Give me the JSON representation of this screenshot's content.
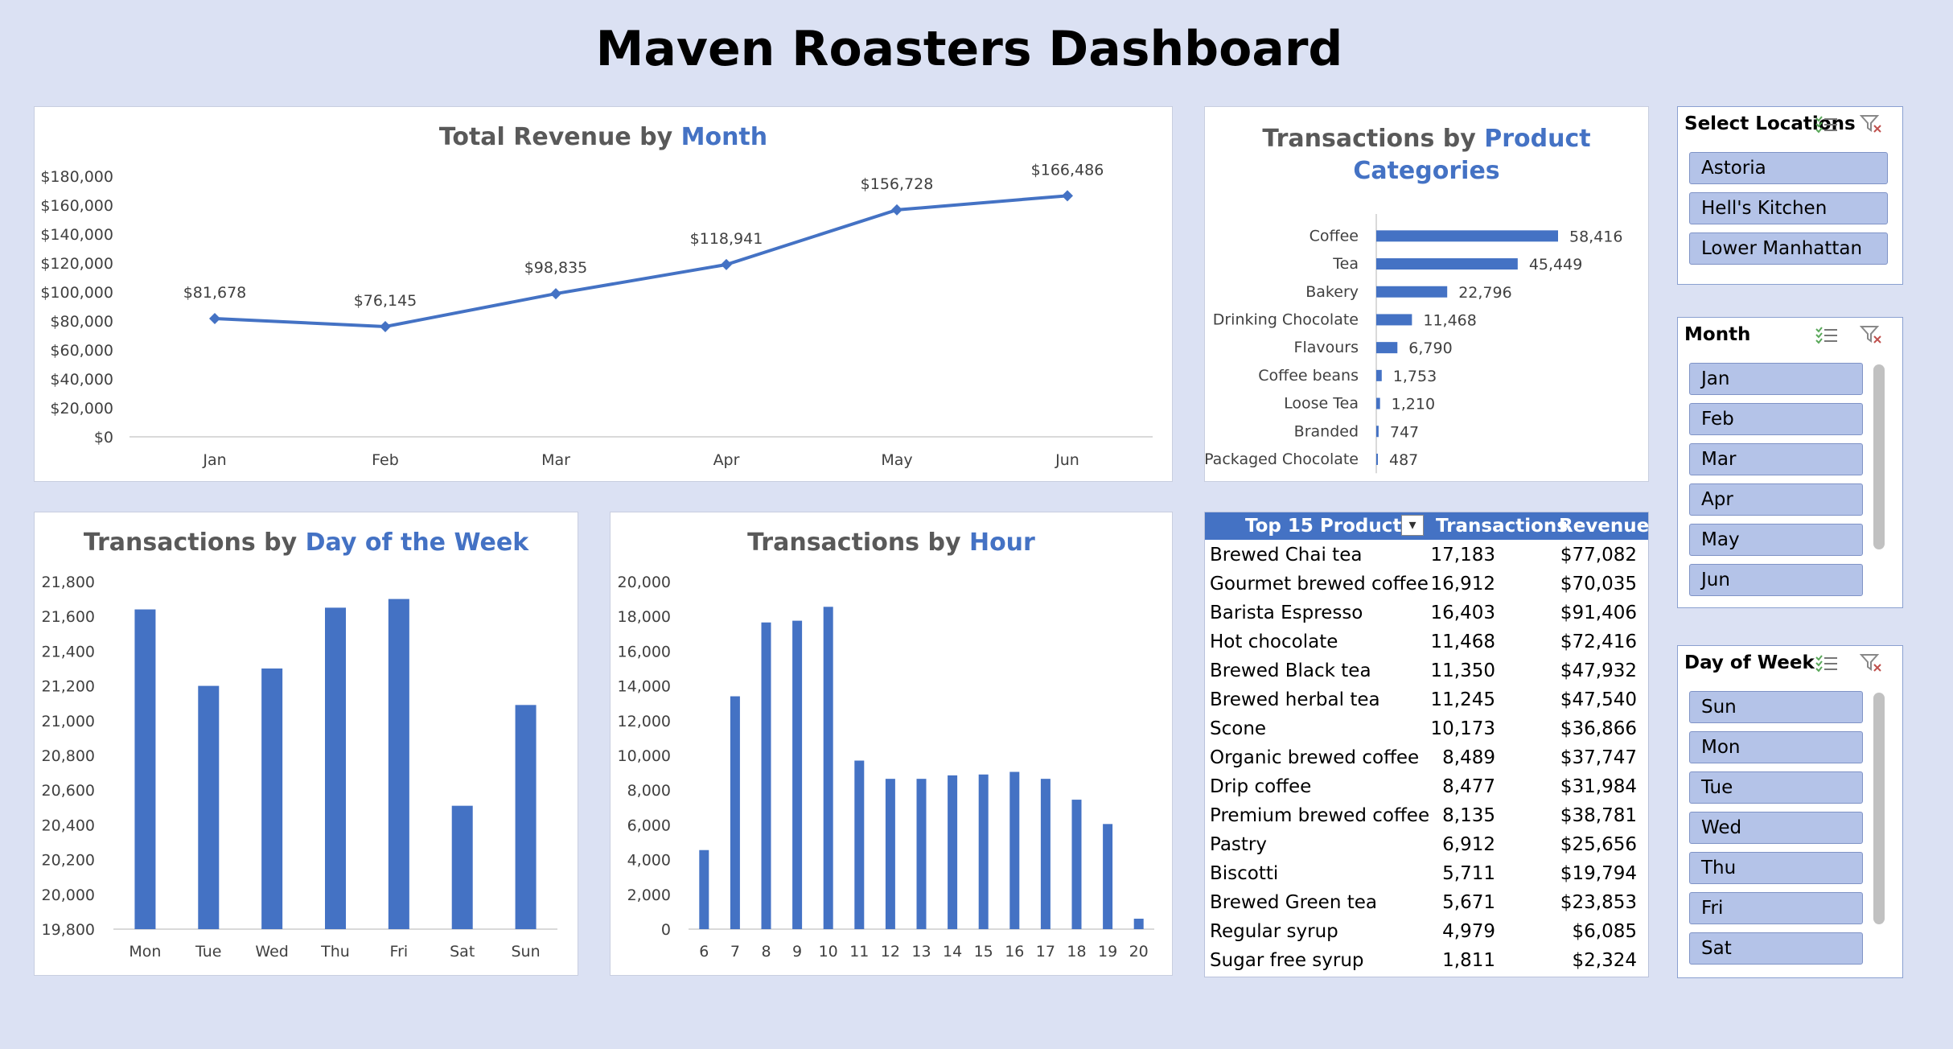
{
  "dashboard": {
    "title": "Maven Roasters Dashboard"
  },
  "colors": {
    "accent": "#4472c4",
    "background": "#dbe1f3",
    "slicer_item": "#b4c3e8"
  },
  "chart_data": [
    {
      "id": "revenue",
      "type": "line",
      "title_parts": [
        "Total Revenue ",
        "by ",
        "Month"
      ],
      "categories": [
        "Jan",
        "Feb",
        "Mar",
        "Apr",
        "May",
        "Jun"
      ],
      "values": [
        81678,
        76145,
        98835,
        118941,
        156728,
        166486
      ],
      "data_labels": [
        "$81,678",
        "$76,145",
        "$98,835",
        "$118,941",
        "$156,728",
        "$166,486"
      ],
      "ylim": [
        0,
        180000
      ],
      "yticks": [
        "$0",
        "$20,000",
        "$40,000",
        "$60,000",
        "$80,000",
        "$100,000",
        "$120,000",
        "$140,000",
        "$160,000",
        "$180,000"
      ]
    },
    {
      "id": "categories",
      "type": "bar",
      "orientation": "horizontal",
      "title_parts": [
        "Transactions by ",
        "Product",
        "Categories"
      ],
      "categories": [
        "Coffee",
        "Tea",
        "Bakery",
        "Drinking Chocolate",
        "Flavours",
        "Coffee beans",
        "Loose Tea",
        "Branded",
        "Packaged Chocolate"
      ],
      "values": [
        58416,
        45449,
        22796,
        11468,
        6790,
        1753,
        1210,
        747,
        487
      ],
      "data_labels": [
        "58,416",
        "45,449",
        "22,796",
        "11,468",
        "6,790",
        "1,753",
        "1,210",
        "747",
        "487"
      ]
    },
    {
      "id": "weekday",
      "type": "bar",
      "title_parts": [
        "Transactions by ",
        "Day of the Week"
      ],
      "categories": [
        "Mon",
        "Tue",
        "Wed",
        "Thu",
        "Fri",
        "Sat",
        "Sun"
      ],
      "values": [
        21640,
        21200,
        21300,
        21650,
        21700,
        20510,
        21090
      ],
      "ylim": [
        19800,
        21800
      ],
      "yticks": [
        "19,800",
        "20,000",
        "20,200",
        "20,400",
        "20,600",
        "20,800",
        "21,000",
        "21,200",
        "21,400",
        "21,600",
        "21,800"
      ]
    },
    {
      "id": "hour",
      "type": "bar",
      "title_parts": [
        "Transactions by ",
        "Hour"
      ],
      "categories": [
        "6",
        "7",
        "8",
        "9",
        "10",
        "11",
        "12",
        "13",
        "14",
        "15",
        "16",
        "17",
        "18",
        "19",
        "20"
      ],
      "values": [
        4550,
        13400,
        17650,
        17750,
        18550,
        9700,
        8650,
        8650,
        8850,
        8900,
        9050,
        8650,
        7450,
        6050,
        600
      ],
      "ylim": [
        0,
        20000
      ],
      "yticks": [
        "0",
        "2,000",
        "4,000",
        "6,000",
        "8,000",
        "10,000",
        "12,000",
        "14,000",
        "16,000",
        "18,000",
        "20,000"
      ]
    },
    {
      "id": "top15",
      "type": "table",
      "columns": [
        "Top 15 Products",
        "Transactions",
        "Revenue"
      ],
      "rows": [
        [
          "Brewed Chai tea",
          "17,183",
          "$77,082"
        ],
        [
          "Gourmet brewed coffee",
          "16,912",
          "$70,035"
        ],
        [
          "Barista Espresso",
          "16,403",
          "$91,406"
        ],
        [
          "Hot chocolate",
          "11,468",
          "$72,416"
        ],
        [
          "Brewed Black tea",
          "11,350",
          "$47,932"
        ],
        [
          "Brewed herbal tea",
          "11,245",
          "$47,540"
        ],
        [
          "Scone",
          "10,173",
          "$36,866"
        ],
        [
          "Organic brewed coffee",
          "8,489",
          "$37,747"
        ],
        [
          "Drip coffee",
          "8,477",
          "$31,984"
        ],
        [
          "Premium brewed coffee",
          "8,135",
          "$38,781"
        ],
        [
          "Pastry",
          "6,912",
          "$25,656"
        ],
        [
          "Biscotti",
          "5,711",
          "$19,794"
        ],
        [
          "Brewed Green tea",
          "5,671",
          "$23,853"
        ],
        [
          "Regular syrup",
          "4,979",
          "$6,085"
        ],
        [
          "Sugar free syrup",
          "1,811",
          "$2,324"
        ]
      ]
    }
  ],
  "slicers": [
    {
      "id": "locations",
      "title": "Select Locations",
      "items": [
        "Astoria",
        "Hell's Kitchen",
        "Lower Manhattan"
      ],
      "icons": [
        "multi-select-icon",
        "clear-filter-icon"
      ]
    },
    {
      "id": "month",
      "title": "Month",
      "items": [
        "Jan",
        "Feb",
        "Mar",
        "Apr",
        "May",
        "Jun"
      ],
      "icons": [
        "multi-select-icon",
        "clear-filter-icon"
      ]
    },
    {
      "id": "day",
      "title": "Day of Week",
      "items": [
        "Sun",
        "Mon",
        "Tue",
        "Wed",
        "Thu",
        "Fri",
        "Sat"
      ],
      "icons": [
        "multi-select-icon",
        "clear-filter-icon"
      ]
    }
  ]
}
